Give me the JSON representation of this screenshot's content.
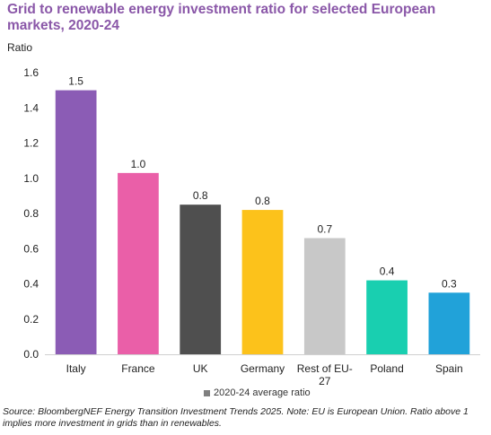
{
  "chart_data": {
    "type": "bar",
    "title": "Grid to renewable energy investment ratio for selected European markets, 2020-24",
    "ylabel": "Ratio",
    "xlabel": "",
    "ylim": [
      0,
      1.6
    ],
    "yticks": [
      "0.0",
      "0.2",
      "0.4",
      "0.6",
      "0.8",
      "1.0",
      "1.2",
      "1.4",
      "1.6"
    ],
    "grid": false,
    "legend_position": "bottom",
    "legend_label": "2020-24 average ratio",
    "legend_color": "#7f7f7f",
    "categories": [
      "Italy",
      "France",
      "UK",
      "Germany",
      "Rest of EU-27",
      "Poland",
      "Spain"
    ],
    "category_lines": [
      [
        "Italy"
      ],
      [
        "France"
      ],
      [
        "UK"
      ],
      [
        "Germany"
      ],
      [
        "Rest of EU-",
        "27"
      ],
      [
        "Poland"
      ],
      [
        "Spain"
      ]
    ],
    "values": [
      1.5,
      1.03,
      0.85,
      0.82,
      0.66,
      0.42,
      0.35
    ],
    "data_labels": [
      "1.5",
      "1.0",
      "0.8",
      "0.8",
      "0.7",
      "0.4",
      "0.3"
    ],
    "colors": [
      "#8b5cb5",
      "#ea5fa8",
      "#4f4f4f",
      "#fcc21b",
      "#c8c8c8",
      "#19cfb0",
      "#21a2d9"
    ]
  },
  "source_text": "Source: BloombergNEF Energy Transition Investment Trends 2025. Note: EU is European Union. Ratio above 1 implies more investment in grids than in renewables."
}
